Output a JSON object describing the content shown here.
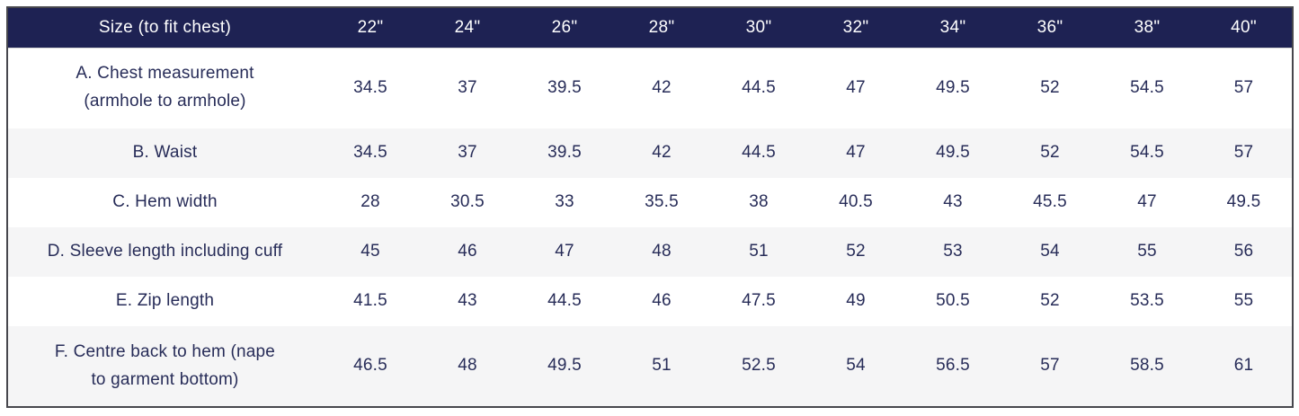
{
  "colors": {
    "header_bg": "#1e2253",
    "header_text": "#ffffff",
    "body_text": "#272c58",
    "alt_row_bg": "#f5f5f6",
    "table_border": "#47474d"
  },
  "chart_data": {
    "type": "table",
    "title": "Size (to fit chest)",
    "columns": [
      "22\"",
      "24\"",
      "26\"",
      "28\"",
      "30\"",
      "32\"",
      "34\"",
      "36\"",
      "38\"",
      "40\""
    ],
    "rows": [
      {
        "label": "A. Chest measurement (armhole to armhole)",
        "values": [
          34.5,
          37,
          39.5,
          42,
          44.5,
          47,
          49.5,
          52,
          54.5,
          57
        ]
      },
      {
        "label": "B. Waist",
        "values": [
          34.5,
          37,
          39.5,
          42,
          44.5,
          47,
          49.5,
          52,
          54.5,
          57
        ]
      },
      {
        "label": "C. Hem width",
        "values": [
          28,
          30.5,
          33,
          35.5,
          38,
          40.5,
          43,
          45.5,
          47,
          49.5
        ]
      },
      {
        "label": "D. Sleeve length including cuff",
        "values": [
          45,
          46,
          47,
          48,
          51,
          52,
          53,
          54,
          55,
          56
        ]
      },
      {
        "label": "E. Zip length",
        "values": [
          41.5,
          43,
          44.5,
          46,
          47.5,
          49,
          50.5,
          52,
          53.5,
          55
        ]
      },
      {
        "label": "F. Centre back to hem (nape to garment bottom)",
        "values": [
          46.5,
          48,
          49.5,
          51,
          52.5,
          54,
          56.5,
          57,
          58.5,
          61
        ]
      }
    ]
  }
}
